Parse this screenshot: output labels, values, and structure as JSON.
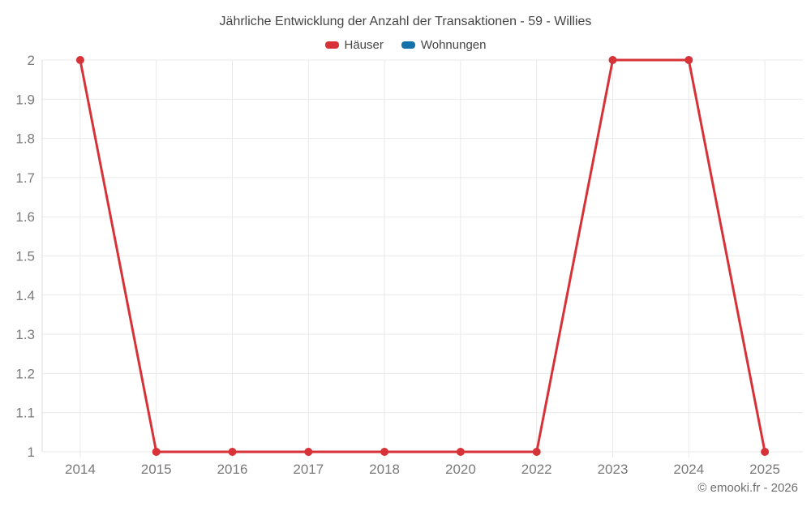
{
  "header": {
    "title": "Jährliche Entwicklung der Anzahl der Transaktionen - 59 - Willies"
  },
  "legend": {
    "items": [
      {
        "label": "Häuser",
        "color": "#d63238"
      },
      {
        "label": "Wohnungen",
        "color": "#1571a9"
      }
    ]
  },
  "footer": {
    "copyright": "© emooki.fr - 2026"
  },
  "colors": {
    "background": "#ffffff",
    "grid": "#eaeaea",
    "axis_line": "#dbdbdb",
    "tick_label": "#7a7a7a",
    "title_text": "#454545",
    "copyright_text": "#6e6e6e",
    "hauser_red": "#d63238",
    "wohnungen_blue": "#1571a9"
  },
  "chart_data": {
    "type": "line",
    "title": "Jährliche Entwicklung der Anzahl der Transaktionen - 59 - Willies",
    "categories": [
      "2014",
      "2015",
      "2016",
      "2017",
      "2018",
      "2020",
      "2022",
      "2023",
      "2024",
      "2025"
    ],
    "series": [
      {
        "name": "Häuser",
        "color": "#d63238",
        "marker": "circle",
        "values": [
          2,
          1,
          1,
          1,
          1,
          1,
          1,
          2,
          2,
          1
        ]
      },
      {
        "name": "Wohnungen",
        "color": "#1571a9",
        "marker": "circle",
        "values": []
      }
    ],
    "xlabel": "",
    "ylabel": "",
    "ylim": [
      1,
      2
    ],
    "ytick_step": 0.1,
    "grid": true,
    "legend_position": "top"
  }
}
